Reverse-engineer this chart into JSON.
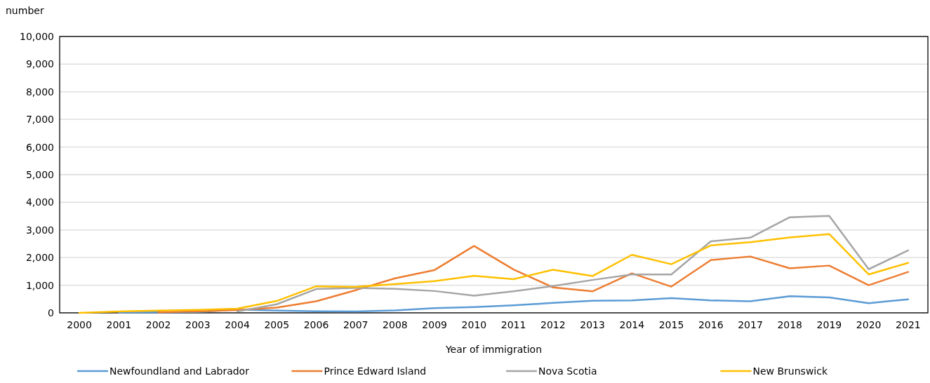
{
  "chart_data": {
    "type": "line",
    "ylabel": "number",
    "xlabel": "Year of immigration",
    "categories": [
      "2000",
      "2001",
      "2002",
      "2003",
      "2004",
      "2005",
      "2006",
      "2007",
      "2008",
      "2009",
      "2010",
      "2011",
      "2012",
      "2013",
      "2014",
      "2015",
      "2016",
      "2017",
      "2018",
      "2019",
      "2020",
      "2021"
    ],
    "series": [
      {
        "name": "Newfoundland and Labrador",
        "color": "#5b9bd5",
        "values": [
          null,
          10,
          20,
          30,
          120,
          80,
          60,
          50,
          90,
          170,
          210,
          270,
          360,
          440,
          450,
          530,
          450,
          420,
          600,
          560,
          350,
          490
        ]
      },
      {
        "name": "Prince Edward Island",
        "color": "#ed7d31",
        "values": [
          null,
          null,
          20,
          50,
          100,
          190,
          420,
          820,
          1250,
          1550,
          2420,
          1570,
          920,
          780,
          1430,
          950,
          1910,
          2040,
          1610,
          1710,
          1000,
          1480
        ]
      },
      {
        "name": "Nova Scotia",
        "color": "#a5a5a5",
        "values": [
          null,
          null,
          null,
          null,
          50,
          310,
          860,
          900,
          870,
          790,
          620,
          780,
          970,
          1190,
          1390,
          1390,
          2590,
          2720,
          3460,
          3510,
          1580,
          2260
        ]
      },
      {
        "name": "New Brunswick",
        "color": "#ffc000",
        "values": [
          0,
          50,
          80,
          110,
          150,
          430,
          960,
          940,
          1040,
          1150,
          1340,
          1220,
          1560,
          1330,
          2100,
          1760,
          2440,
          2560,
          2730,
          2850,
          1390,
          1810
        ]
      }
    ],
    "ylim": [
      0,
      10000
    ],
    "yticks": [
      {
        "value": 0,
        "label": "0"
      },
      {
        "value": 1000,
        "label": "1,000"
      },
      {
        "value": 2000,
        "label": "2,000"
      },
      {
        "value": 3000,
        "label": "3,000"
      },
      {
        "value": 4000,
        "label": "4,000"
      },
      {
        "value": 5000,
        "label": "5,000"
      },
      {
        "value": 6000,
        "label": "6,000"
      },
      {
        "value": 7000,
        "label": "7,000"
      },
      {
        "value": 8000,
        "label": "8,000"
      },
      {
        "value": 9000,
        "label": "9,000"
      },
      {
        "value": 10000,
        "label": "10,000"
      }
    ],
    "grid": "y",
    "legend": "bottom",
    "marker": "none",
    "line_style": "solid"
  }
}
